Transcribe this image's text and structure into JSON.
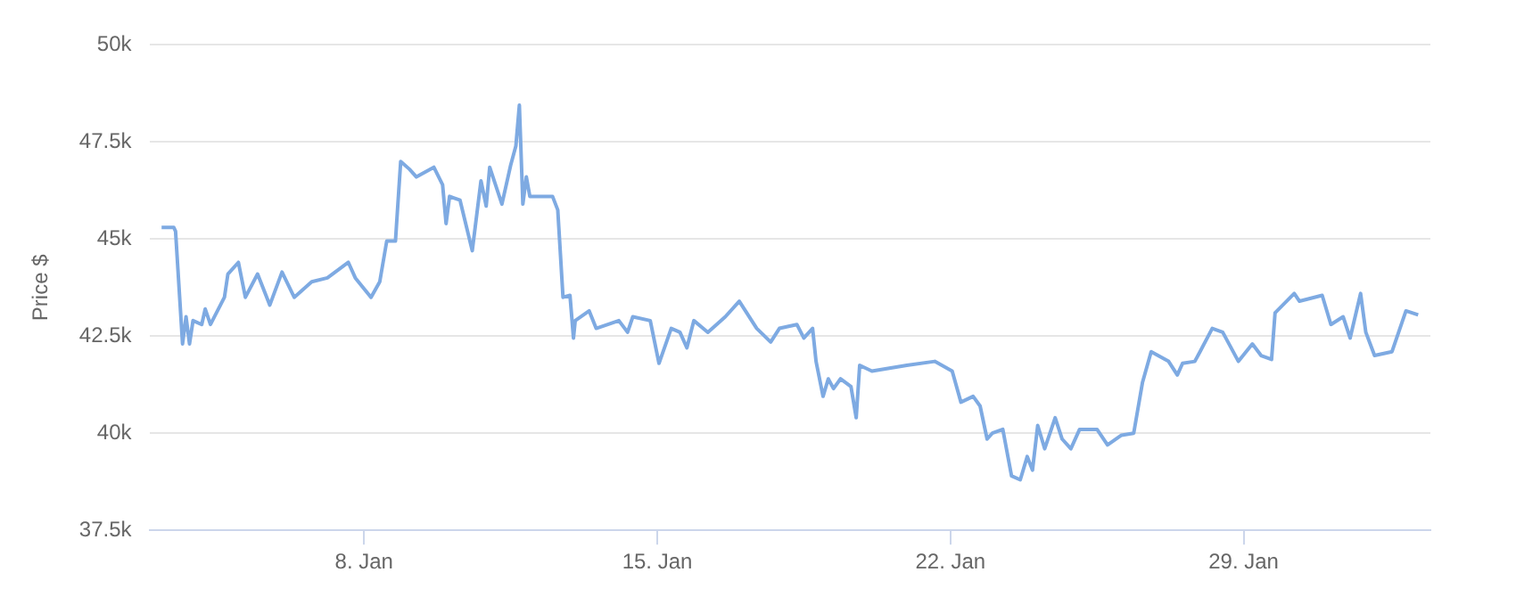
{
  "chart_data": {
    "type": "line",
    "ylabel": "Price $",
    "grid": "y",
    "legend": false,
    "marker": "none",
    "line_style": "solid",
    "xlim": [
      "--01-02T21:00",
      "--02-02T11:00"
    ],
    "xticks": [
      {
        "value": "--01-08",
        "label": "8. Jan"
      },
      {
        "value": "--01-15",
        "label": "15. Jan"
      },
      {
        "value": "--01-22",
        "label": "22. Jan"
      },
      {
        "value": "--01-29",
        "label": "29. Jan"
      }
    ],
    "ylim": [
      37500,
      50000
    ],
    "yticks": [
      {
        "value": 37500,
        "label": "37.5k"
      },
      {
        "value": 40000,
        "label": "40k"
      },
      {
        "value": 42500,
        "label": "42.5k"
      },
      {
        "value": 45000,
        "label": "45k"
      },
      {
        "value": 47500,
        "label": "47.5k"
      },
      {
        "value": 50000,
        "label": "50k"
      }
    ],
    "series": [
      {
        "color": "#7eaae2",
        "x": [
          "--01-03T04:00",
          "--01-03T11:00",
          "--01-03T12:00",
          "--01-03T16:00",
          "--01-03T18:00",
          "--01-03T20:00",
          "--01-03T22:00",
          "--01-04T03:00",
          "--01-04T05:00",
          "--01-04T08:00",
          "--01-04T16:00",
          "--01-04T18:00",
          "--01-05T00:00",
          "--01-05T04:00",
          "--01-05T11:00",
          "--01-05T18:00",
          "--01-06T01:00",
          "--01-06T08:00",
          "--01-06T18:00",
          "--01-07T03:00",
          "--01-07T15:00",
          "--01-07T19:00",
          "--01-08T04:00",
          "--01-08T09:00",
          "--01-08T13:00",
          "--01-08T18:00",
          "--01-08T21:00",
          "--01-09T02:00",
          "--01-09T06:00",
          "--01-09T16:00",
          "--01-09T21:00",
          "--01-09T23:00",
          "--01-10T01:00",
          "--01-10T07:00",
          "--01-10T14:00",
          "--01-10T19:00",
          "--01-10T22:00",
          "--01-11T00:00",
          "--01-11T07:00",
          "--01-11T12:00",
          "--01-11T15:00",
          "--01-11T17:00",
          "--01-11T19:00",
          "--01-11T21:00",
          "--01-11T23:00",
          "--01-12T12:00",
          "--01-12T15:00",
          "--01-12T18:00",
          "--01-12T22:00",
          "--01-13T00:00",
          "--01-13T01:00",
          "--01-13T09:00",
          "--01-13T13:00",
          "--01-14T02:00",
          "--01-14T07:00",
          "--01-14T10:00",
          "--01-14T20:00",
          "--01-15T01:00",
          "--01-15T08:00",
          "--01-15T13:00",
          "--01-15T17:00",
          "--01-15T21:00",
          "--01-16T05:00",
          "--01-16T15:00",
          "--01-16T23:00",
          "--01-17T09:00",
          "--01-17T17:00",
          "--01-17T22:00",
          "--01-18T08:00",
          "--01-18T12:00",
          "--01-18T17:00",
          "--01-18T19:00",
          "--01-18T23:00",
          "--01-19T02:00",
          "--01-19T05:00",
          "--01-19T09:00",
          "--01-19T15:00",
          "--01-19T18:00",
          "--01-19T20:00",
          "--01-20T03:00",
          "--01-20T23:00",
          "--01-21T15:00",
          "--01-22T01:00",
          "--01-22T06:00",
          "--01-22T13:00",
          "--01-22T17:00",
          "--01-22T21:00",
          "--01-23T00:00",
          "--01-23T06:00",
          "--01-23T11:00",
          "--01-23T16:00",
          "--01-23T20:00",
          "--01-23T23:00",
          "--01-24T02:00",
          "--01-24T06:00",
          "--01-24T12:00",
          "--01-24T16:00",
          "--01-24T21:00",
          "--01-25T02:00",
          "--01-25T12:00",
          "--01-25T18:00",
          "--01-26T02:00",
          "--01-26T09:00",
          "--01-26T14:00",
          "--01-26T19:00",
          "--01-27T05:00",
          "--01-27T10:00",
          "--01-27T13:00",
          "--01-27T20:00",
          "--01-27T23:00",
          "--01-28T06:00",
          "--01-28T12:00",
          "--01-28T21:00",
          "--01-29T05:00",
          "--01-29T10:00",
          "--01-29T16:00",
          "--01-29T18:00",
          "--01-30T05:00",
          "--01-30T08:00",
          "--01-30T21:00",
          "--01-31T02:00",
          "--01-31T09:00",
          "--01-31T13:00",
          "--01-31T19:00",
          "--01-31T22:00",
          "--02-01T03:00",
          "--02-01T13:00",
          "--02-01T21:00",
          "--02-02T04:00"
        ],
        "values": [
          45300,
          45300,
          45200,
          42300,
          43000,
          42300,
          42900,
          42800,
          43200,
          42800,
          43500,
          44100,
          44400,
          43500,
          44100,
          43300,
          44150,
          43500,
          43900,
          44000,
          44400,
          44000,
          43500,
          43900,
          44950,
          44950,
          47000,
          46800,
          46600,
          46850,
          46400,
          45400,
          46100,
          46000,
          44700,
          46500,
          45850,
          46850,
          45900,
          46900,
          47400,
          48450,
          45900,
          46600,
          46100,
          46100,
          45750,
          43500,
          43550,
          42450,
          42900,
          43150,
          42700,
          42900,
          42600,
          43000,
          42900,
          41800,
          42700,
          42600,
          42200,
          42900,
          42600,
          43000,
          43400,
          42700,
          42350,
          42700,
          42800,
          42450,
          42700,
          41850,
          40950,
          41400,
          41150,
          41400,
          41200,
          40400,
          41750,
          41600,
          41750,
          41850,
          41600,
          40800,
          40950,
          40700,
          39850,
          40000,
          40100,
          38900,
          38800,
          39400,
          39050,
          40200,
          39600,
          40400,
          39850,
          39600,
          40100,
          40100,
          39700,
          39950,
          40000,
          41300,
          42100,
          41850,
          41500,
          41800,
          41850,
          42100,
          42700,
          42600,
          41850,
          42300,
          42000,
          41900,
          43100,
          43600,
          43400,
          43550,
          42800,
          43000,
          42450,
          43600,
          42600,
          42000,
          42100,
          43150,
          43050
        ]
      }
    ]
  }
}
